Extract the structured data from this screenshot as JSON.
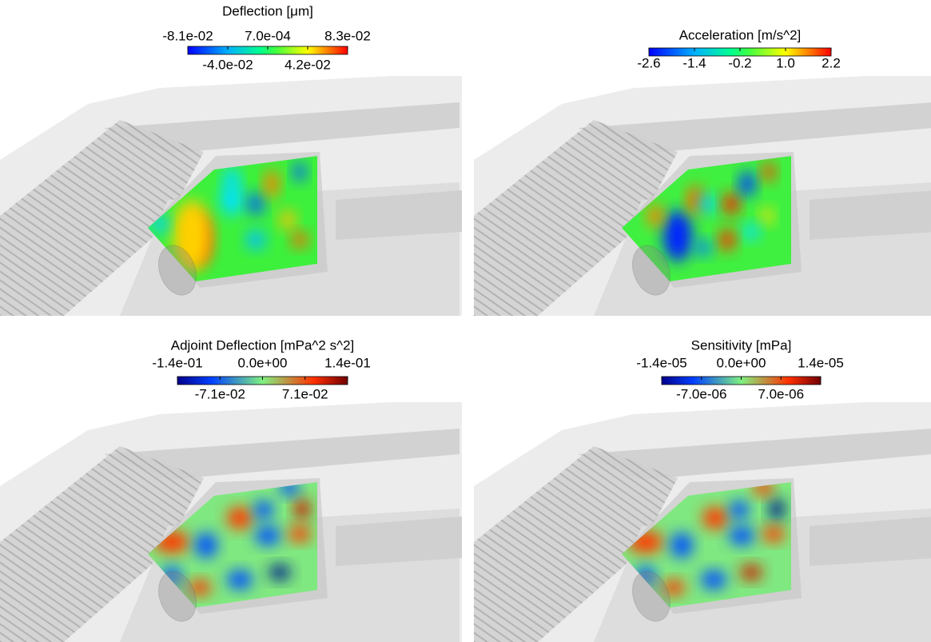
{
  "panels": [
    {
      "title": "Deflection [μm]",
      "ticks_top": [
        "-8.1e-02",
        "7.0e-04",
        "8.3e-02"
      ],
      "ticks_bottom": [
        "-4.0e-02",
        "4.2e-02"
      ]
    },
    {
      "title": "Acceleration [m/s^2]",
      "ticks_bottom": [
        "-2.6",
        "-1.4",
        "-0.2",
        "1.0",
        "2.2"
      ]
    },
    {
      "title": "Adjoint Deflection [mPa^2 s^2]",
      "ticks_top": [
        "-1.4e-01",
        "0.0e+00",
        "1.4e-01"
      ],
      "ticks_bottom": [
        "-7.1e-02",
        "7.1e-02"
      ]
    },
    {
      "title": "Sensitivity [mPa]",
      "ticks_top": [
        "-1.4e-05",
        "0.0e+00",
        "1.4e-05"
      ],
      "ticks_bottom": [
        "-7.0e-06",
        "7.0e-06"
      ]
    }
  ]
}
